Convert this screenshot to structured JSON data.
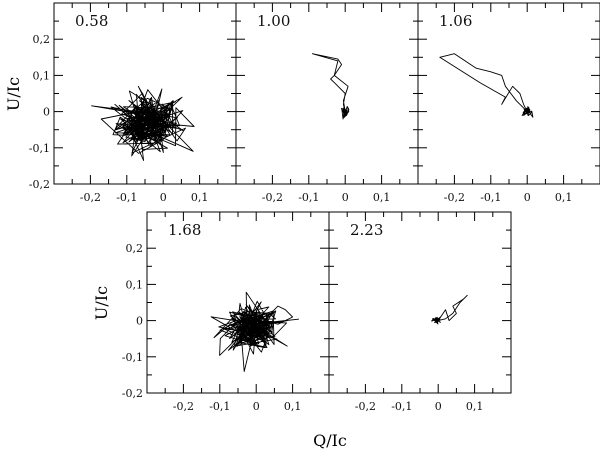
{
  "chart_data": {
    "type": "line",
    "xlabel": "Q/Ic",
    "ylabel": "U/Ic",
    "xlim": [
      -0.3,
      0.2
    ],
    "ylim": [
      -0.2,
      0.3
    ],
    "x_ticks": [
      -0.2,
      -0.1,
      0,
      0.1
    ],
    "x_tick_labels": [
      "-0,2",
      "-0,1",
      "0",
      "0,1"
    ],
    "y_ticks": [
      -0.2,
      -0.1,
      0,
      0.1,
      0.2
    ],
    "y_tick_labels": [
      "-0,2",
      "-0,1",
      "0",
      "0,1",
      "0,2"
    ],
    "grid": false,
    "panels": [
      {
        "label": "0.58",
        "cluster": {
          "center": [
            -0.04,
            -0.03
          ],
          "spread": [
            0.045,
            0.04
          ],
          "n": 260
        },
        "path": []
      },
      {
        "label": "1.00",
        "cluster": {
          "center": [
            0.0,
            0.0
          ],
          "spread": [
            0.006,
            0.006
          ],
          "n": 40
        },
        "path": [
          [
            0.0,
            0.0
          ],
          [
            -0.005,
            0.03
          ],
          [
            0.008,
            0.07
          ],
          [
            -0.03,
            0.1
          ],
          [
            -0.01,
            0.13
          ],
          [
            -0.02,
            0.145
          ],
          [
            -0.09,
            0.16
          ],
          [
            -0.02,
            0.14
          ],
          [
            -0.03,
            0.1
          ],
          [
            -0.04,
            0.09
          ],
          [
            -0.03,
            0.08
          ],
          [
            0.0,
            0.05
          ],
          [
            -0.005,
            0.02
          ],
          [
            0.0,
            0.0
          ]
        ]
      },
      {
        "label": "1.06",
        "cluster": {
          "center": [
            0.0,
            0.0
          ],
          "spread": [
            0.007,
            0.006
          ],
          "n": 40
        },
        "path": [
          [
            0.0,
            0.0
          ],
          [
            -0.03,
            0.03
          ],
          [
            -0.06,
            0.07
          ],
          [
            -0.07,
            0.1
          ],
          [
            -0.1,
            0.11
          ],
          [
            -0.14,
            0.12
          ],
          [
            -0.2,
            0.16
          ],
          [
            -0.24,
            0.15
          ],
          [
            -0.13,
            0.08
          ],
          [
            -0.06,
            0.04
          ],
          [
            -0.07,
            0.02
          ],
          [
            -0.04,
            0.07
          ],
          [
            -0.02,
            0.05
          ],
          [
            -0.01,
            0.02
          ],
          [
            0.0,
            0.0
          ]
        ]
      },
      {
        "label": "1.68",
        "cluster": {
          "center": [
            -0.01,
            -0.02
          ],
          "spread": [
            0.04,
            0.03
          ],
          "n": 230
        },
        "path": [
          [
            0.02,
            0.0
          ],
          [
            0.06,
            0.04
          ],
          [
            0.08,
            0.03
          ],
          [
            0.1,
            0.01
          ],
          [
            0.06,
            -0.01
          ],
          [
            0.02,
            0.0
          ]
        ]
      },
      {
        "label": "2.23",
        "cluster": {
          "center": [
            -0.005,
            0.0
          ],
          "spread": [
            0.006,
            0.005
          ],
          "n": 40
        },
        "path": [
          [
            0.0,
            0.0
          ],
          [
            0.02,
            0.03
          ],
          [
            0.03,
            0.0
          ],
          [
            0.05,
            0.02
          ],
          [
            0.04,
            0.04
          ],
          [
            0.07,
            0.06
          ],
          [
            0.08,
            0.07
          ],
          [
            0.06,
            0.05
          ],
          [
            0.04,
            0.02
          ],
          [
            0.02,
            0.005
          ],
          [
            0.0,
            0.0
          ]
        ]
      }
    ]
  }
}
